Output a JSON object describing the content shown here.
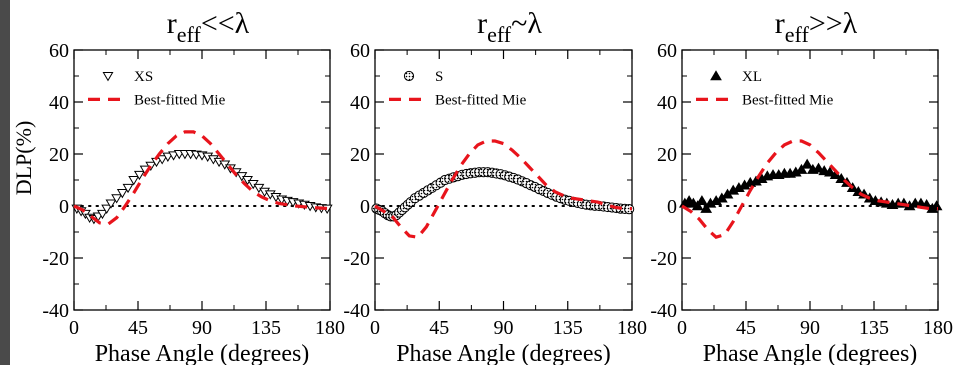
{
  "figure": {
    "ylabel": "DLP(%)",
    "xlabel": "Phase Angle (degrees)"
  },
  "chart_data": [
    {
      "type": "scatter",
      "title": "r",
      "title_sub": "eff",
      "title_rel": "<<λ",
      "xlabel": "Phase Angle (degrees)",
      "ylabel": "DLP(%)",
      "xlim": [
        0,
        180
      ],
      "ylim": [
        -40,
        60
      ],
      "xticks": [
        0,
        45,
        90,
        135,
        180
      ],
      "yticks": [
        -40,
        -20,
        0,
        20,
        40,
        60
      ],
      "grid": false,
      "legend": "top-left",
      "zero_line": true,
      "series": [
        {
          "name": "XS",
          "marker": "triangle-down-open",
          "x": [
            2,
            5,
            8,
            11,
            14,
            17,
            20,
            23,
            26,
            30,
            34,
            38,
            42,
            46,
            50,
            54,
            58,
            62,
            66,
            70,
            74,
            78,
            82,
            86,
            90,
            94,
            98,
            102,
            106,
            110,
            114,
            118,
            122,
            126,
            130,
            134,
            138,
            142,
            146,
            150,
            154,
            158,
            162,
            166,
            170,
            174,
            178
          ],
          "y": [
            -1,
            -2,
            -3,
            -4.5,
            -5,
            -4,
            -3,
            -1,
            1,
            3,
            5,
            7,
            10,
            12,
            14,
            15.5,
            17,
            18,
            19,
            19.5,
            20,
            20,
            20,
            19.8,
            19.5,
            19,
            18,
            17,
            16,
            14.5,
            13,
            11.5,
            10,
            8.5,
            7,
            5.5,
            4.5,
            3.5,
            2.5,
            2,
            1.5,
            1,
            0.5,
            0,
            -0.5,
            -0.8,
            -1
          ]
        },
        {
          "name": "Best-fitted Mie",
          "style": "dashed",
          "color": "#e8141c",
          "x": [
            0,
            6,
            12,
            18,
            24,
            30,
            36,
            42,
            48,
            54,
            60,
            66,
            72,
            78,
            84,
            90,
            96,
            102,
            108,
            114,
            120,
            126,
            132,
            138,
            144,
            150,
            156,
            162,
            168,
            174,
            180
          ],
          "y": [
            0,
            -1.5,
            -4,
            -6.5,
            -7,
            -4.5,
            0,
            5,
            10.5,
            15.5,
            20,
            24,
            27,
            28.5,
            28.5,
            27,
            24,
            20,
            16,
            12,
            8.5,
            5.5,
            3.5,
            2,
            1,
            0.5,
            0,
            -0.3,
            -0.6,
            -0.8,
            -1
          ]
        }
      ]
    },
    {
      "type": "scatter",
      "title": "r",
      "title_sub": "eff",
      "title_rel": "~λ",
      "xlabel": "Phase Angle (degrees)",
      "xlim": [
        0,
        180
      ],
      "ylim": [
        -40,
        60
      ],
      "xticks": [
        0,
        45,
        90,
        135,
        180
      ],
      "yticks": [
        -40,
        -20,
        0,
        20,
        40,
        60
      ],
      "grid": false,
      "legend": "top-left",
      "zero_line": true,
      "series": [
        {
          "name": "S",
          "marker": "circle-dotted",
          "x": [
            1,
            3,
            5,
            7,
            9,
            11,
            13,
            15,
            17,
            19,
            21,
            23,
            25,
            28,
            31,
            34,
            37,
            40,
            43,
            46,
            49,
            52,
            55,
            58,
            61,
            64,
            67,
            70,
            73,
            76,
            79,
            82,
            85,
            88,
            91,
            94,
            97,
            100,
            103,
            106,
            109,
            112,
            115,
            118,
            121,
            124,
            127,
            130,
            133,
            136,
            139,
            142,
            145,
            148,
            151,
            154,
            157,
            160,
            163,
            166,
            169,
            172,
            175,
            178
          ],
          "y": [
            -1,
            -1.5,
            -2,
            -2.8,
            -3.5,
            -4,
            -4,
            -3.5,
            -2.5,
            -1.5,
            -0.5,
            0.5,
            1.5,
            3,
            4,
            5,
            6,
            7,
            8,
            9,
            10,
            10.5,
            11,
            11.5,
            12,
            12.3,
            12.6,
            12.8,
            13,
            13,
            13,
            12.8,
            12.5,
            12.2,
            11.8,
            11.3,
            10.8,
            10.2,
            9.5,
            8.8,
            8,
            7.3,
            6.5,
            5.8,
            5,
            4.3,
            3.6,
            3,
            2.4,
            2,
            1.6,
            1.2,
            0.8,
            0.5,
            0.3,
            0.1,
            0,
            -0.2,
            -0.4,
            -0.6,
            -0.8,
            -1,
            -1.1,
            -1.2
          ]
        },
        {
          "name": "Best-fitted Mie",
          "style": "dashed",
          "color": "#e8141c",
          "x": [
            0,
            6,
            12,
            18,
            24,
            30,
            36,
            42,
            48,
            54,
            60,
            66,
            72,
            78,
            84,
            90,
            96,
            102,
            108,
            114,
            120,
            126,
            132,
            138,
            144,
            150,
            156,
            162,
            168,
            174,
            180
          ],
          "y": [
            0,
            -2,
            -4,
            -8,
            -11.5,
            -12,
            -8,
            -2,
            4,
            10,
            15.5,
            20,
            23.5,
            25,
            25,
            24,
            21.5,
            18.5,
            15,
            11.5,
            8,
            5.5,
            4,
            3,
            2.5,
            2,
            1.5,
            0.5,
            -0.5,
            -1,
            -1
          ]
        }
      ]
    },
    {
      "type": "scatter",
      "title": "r",
      "title_sub": "eff",
      "title_rel": ">>λ",
      "xlabel": "Phase Angle (degrees)",
      "xlim": [
        0,
        180
      ],
      "ylim": [
        -40,
        60
      ],
      "xticks": [
        0,
        45,
        90,
        135,
        180
      ],
      "yticks": [
        -40,
        -20,
        0,
        20,
        40,
        60
      ],
      "grid": false,
      "legend": "top-left",
      "zero_line": true,
      "series": [
        {
          "name": "XL",
          "marker": "triangle-up-filled",
          "x": [
            2,
            5,
            8,
            11,
            14,
            17,
            20,
            24,
            28,
            32,
            36,
            40,
            44,
            48,
            52,
            56,
            60,
            64,
            68,
            72,
            76,
            80,
            84,
            88,
            92,
            96,
            100,
            104,
            108,
            112,
            116,
            120,
            124,
            128,
            132,
            136,
            140,
            144,
            148,
            152,
            156,
            160,
            164,
            168,
            172,
            176,
            179
          ],
          "y": [
            1,
            2,
            1,
            0,
            2,
            -1,
            1,
            2,
            3,
            4.5,
            6,
            7,
            8,
            9,
            9.5,
            10.5,
            11.5,
            12,
            12,
            12.5,
            12.5,
            13,
            14,
            16,
            14,
            14.5,
            13.5,
            13,
            12,
            10.5,
            9,
            7,
            5.5,
            4.5,
            3,
            2,
            1.5,
            1,
            0.5,
            1,
            1,
            0,
            1,
            1,
            0.5,
            -1,
            0
          ]
        },
        {
          "name": "Best-fitted Mie",
          "style": "dashed",
          "color": "#e8141c",
          "x": [
            0,
            6,
            12,
            18,
            24,
            30,
            36,
            42,
            48,
            54,
            60,
            66,
            72,
            78,
            84,
            90,
            96,
            102,
            108,
            114,
            120,
            126,
            132,
            138,
            144,
            150,
            156,
            162,
            168,
            174,
            180
          ],
          "y": [
            0,
            -2,
            -5,
            -9,
            -12,
            -11,
            -6,
            0,
            6,
            11.5,
            16.5,
            20.5,
            23.5,
            25,
            25,
            23.5,
            20.5,
            17,
            13.5,
            10,
            7,
            4.5,
            3,
            2,
            1.5,
            1,
            0.5,
            0,
            -0.5,
            -1,
            -1
          ]
        }
      ]
    }
  ]
}
